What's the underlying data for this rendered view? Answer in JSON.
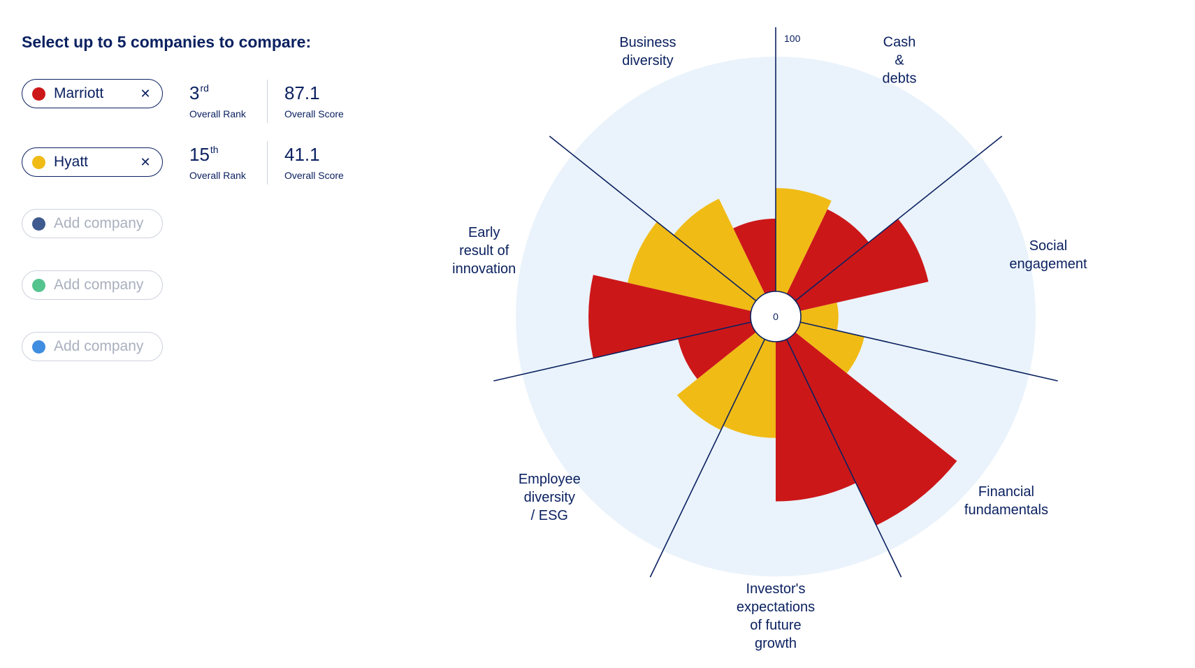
{
  "heading": "Select up to 5 companies to compare:",
  "companies": [
    {
      "name": "Marriott",
      "color": "#cc1719",
      "rank_num": "3",
      "rank_suffix": "rd",
      "rank_label": "Overall Rank",
      "score": "87.1",
      "score_label": "Overall Score",
      "remove_icon": "close-icon"
    },
    {
      "name": "Hyatt",
      "color": "#f0bb15",
      "rank_num": "15",
      "rank_suffix": "th",
      "rank_label": "Overall Rank",
      "score": "41.1",
      "score_label": "Overall Score",
      "remove_icon": "close-icon"
    }
  ],
  "empty_slots": [
    {
      "placeholder": "Add company",
      "color": "#3e5a8e"
    },
    {
      "placeholder": "Add company",
      "color": "#55c38e"
    },
    {
      "placeholder": "Add company",
      "color": "#3f8de0"
    }
  ],
  "chart_data": {
    "type": "polar-area",
    "categories": [
      {
        "label": [
          "Cash",
          "&",
          "debts"
        ]
      },
      {
        "label": [
          "Social",
          "engagement"
        ]
      },
      {
        "label": [
          "Financial",
          "fundamentals"
        ]
      },
      {
        "label": [
          "Investor's",
          "expectations",
          "of future",
          "growth"
        ]
      },
      {
        "label": [
          "Employee",
          "diversity",
          "/ ESG"
        ]
      },
      {
        "label": [
          "Early",
          "result of",
          "innovation"
        ]
      },
      {
        "label": [
          "Business",
          "diversity"
        ]
      }
    ],
    "series": [
      {
        "name": "Marriott",
        "color": "#cc1719",
        "values": [
          40,
          56,
          88,
          68,
          32,
          69,
          31
        ]
      },
      {
        "name": "Hyatt",
        "color": "#f0bb15",
        "values": [
          44,
          16,
          28,
          41,
          43,
          54,
          45
        ]
      }
    ],
    "rlim": [
      0,
      100
    ],
    "tick_labels": {
      "min": "0",
      "max": "100"
    },
    "background_color": "#eaf3fb",
    "axis_color": "#0b2160"
  }
}
